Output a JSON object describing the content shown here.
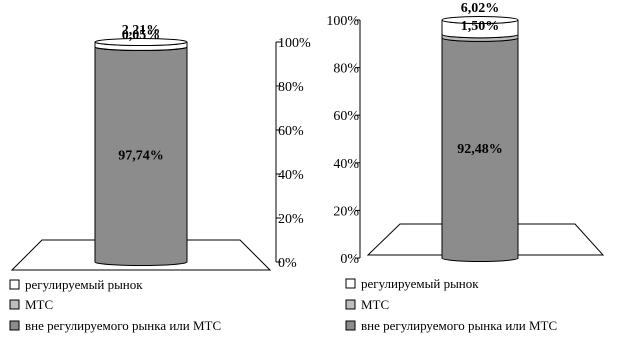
{
  "chart_data": [
    {
      "type": "bar",
      "stacked": true,
      "style": "3d-cylinder",
      "title": "",
      "ylim": [
        0,
        100
      ],
      "ytick_labels": [
        "0%",
        "20%",
        "40%",
        "60%",
        "80%",
        "100%"
      ],
      "y_axis_side": "right",
      "series": [
        {
          "name": "вне регулируемого рынка или МТС",
          "value": 97.74,
          "label": "97,74%",
          "color": "#8c8c8c"
        },
        {
          "name": "МТС",
          "value": 0.05,
          "label": "0,05%",
          "color": "#bdbdbd"
        },
        {
          "name": "регулируемый рынок",
          "value": 2.21,
          "label": "2,21%",
          "color": "#ffffff"
        }
      ],
      "legend": {
        "position": "bottom",
        "items": [
          "регулируемый рынок",
          "МТС",
          "вне регулируемого рынка или МТС"
        ]
      }
    },
    {
      "type": "bar",
      "stacked": true,
      "style": "3d-cylinder",
      "title": "",
      "ylim": [
        0,
        100
      ],
      "ytick_labels": [
        "0%",
        "20%",
        "40%",
        "60%",
        "80%",
        "100%"
      ],
      "y_axis_side": "left",
      "series": [
        {
          "name": "вне регулируемого рынка или МТС",
          "value": 92.48,
          "label": "92,48%",
          "color": "#8c8c8c"
        },
        {
          "name": "МТС",
          "value": 1.5,
          "label": "1,50%",
          "color": "#bdbdbd"
        },
        {
          "name": "регулируемый рынок",
          "value": 6.02,
          "label": "6,02%",
          "color": "#ffffff"
        }
      ],
      "legend": {
        "position": "bottom",
        "items": [
          "регулируемый рынок",
          "МТС",
          "вне регулируемого рынка или МТС"
        ]
      }
    }
  ]
}
